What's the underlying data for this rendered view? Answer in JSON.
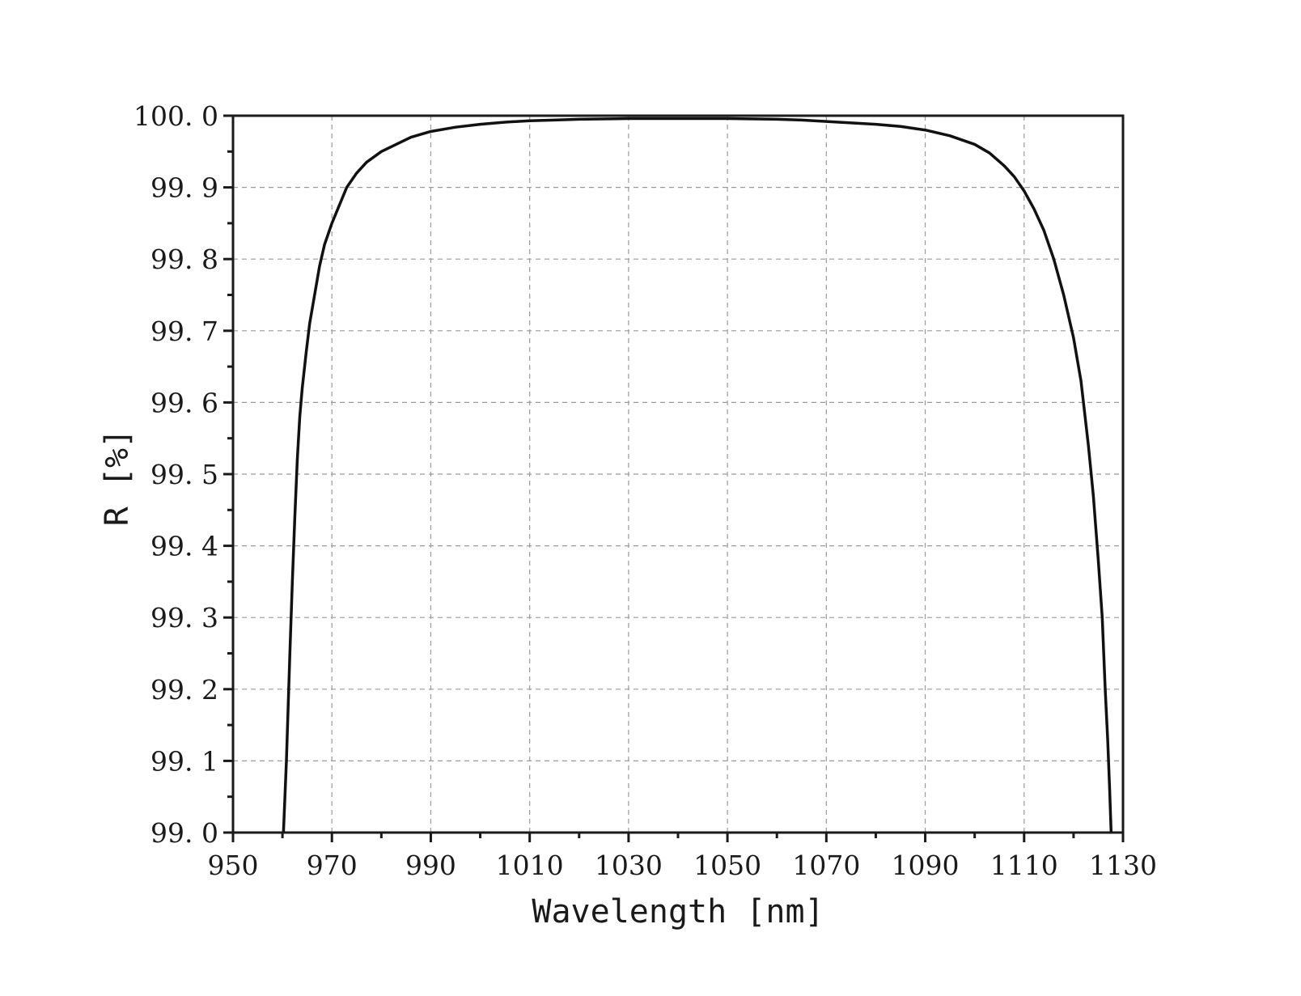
{
  "chart_data": {
    "type": "line",
    "title": "",
    "xlabel": "Wavelength [nm]",
    "ylabel": "R [%]",
    "xlim": [
      950,
      1130
    ],
    "ylim": [
      99.0,
      100.0
    ],
    "xticks": [
      950,
      970,
      990,
      1010,
      1030,
      1050,
      1070,
      1090,
      1110,
      1130
    ],
    "yticks": [
      99.0,
      99.1,
      99.2,
      99.3,
      99.4,
      99.5,
      99.6,
      99.7,
      99.8,
      99.9,
      100.0
    ],
    "xtick_labels": [
      "950",
      "970",
      "990",
      "1010",
      "1030",
      "1050",
      "1070",
      "1090",
      "1110",
      "1130"
    ],
    "ytick_labels": [
      "99. 0",
      "99. 1",
      "99. 2",
      "99. 3",
      "99. 4",
      "99. 5",
      "99. 6",
      "99. 7",
      "99. 8",
      "99. 9",
      "100. 0"
    ],
    "grid": true,
    "series": [
      {
        "x": [
          960.2,
          960.8,
          961.5,
          962.0,
          962.5,
          963.0,
          963.5,
          964.0,
          964.8,
          965.5,
          966.5,
          967.5,
          968.5,
          970.0,
          971.5,
          973.0,
          975.0,
          977.0,
          980.0,
          983.0,
          986.0,
          990.0,
          995.0,
          1000.0,
          1005.0,
          1010.0,
          1015.0,
          1020.0,
          1030.0,
          1040.0,
          1050.0,
          1060.0,
          1065.0,
          1070.0,
          1075.0,
          1080.0,
          1085.0,
          1090.0,
          1095.0,
          1100.0,
          1103.0,
          1106.0,
          1108.0,
          1110.0,
          1112.0,
          1114.0,
          1116.0,
          1118.0,
          1120.0,
          1121.5,
          1123.0,
          1124.0,
          1125.0,
          1125.8,
          1126.4,
          1126.9,
          1127.3,
          1127.6
        ],
        "y": [
          99.0,
          99.1,
          99.25,
          99.35,
          99.44,
          99.52,
          99.58,
          99.62,
          99.67,
          99.71,
          99.75,
          99.79,
          99.82,
          99.85,
          99.875,
          99.9,
          99.92,
          99.935,
          99.95,
          99.96,
          99.97,
          99.978,
          99.984,
          99.988,
          99.991,
          99.993,
          99.994,
          99.995,
          99.996,
          99.996,
          99.996,
          99.995,
          99.994,
          99.992,
          99.99,
          99.988,
          99.985,
          99.98,
          99.972,
          99.96,
          99.948,
          99.93,
          99.915,
          99.895,
          99.87,
          99.84,
          99.8,
          99.75,
          99.69,
          99.63,
          99.54,
          99.47,
          99.38,
          99.3,
          99.2,
          99.13,
          99.06,
          99.0
        ]
      }
    ]
  }
}
